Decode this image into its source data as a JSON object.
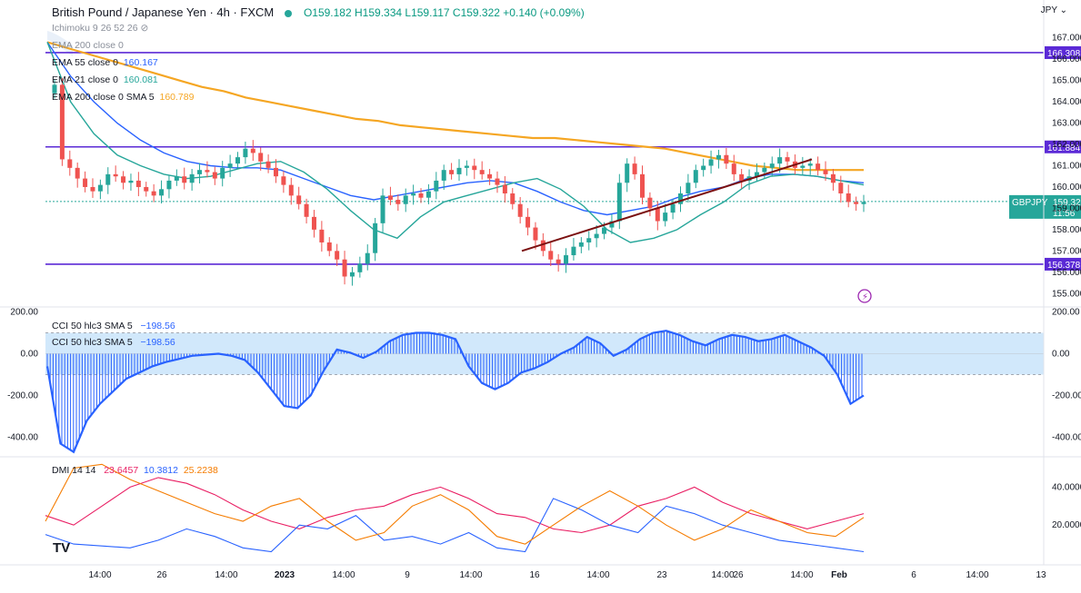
{
  "header": {
    "symbol": "British Pound / Japanese Yen · 4h · FXCM",
    "open": "O159.182",
    "high": "H159.334",
    "low": "L159.117",
    "close": "C159.322",
    "change": "+0.140 (+0.09%)"
  },
  "currency": "JPY",
  "legends": {
    "ichimoku": "Ichimoku 9 26 52 26",
    "ema_hidden": "EMA 200 close 0",
    "ema55_label": "EMA 55 close 0",
    "ema55_value": "160.167",
    "ema21_label": "EMA 21 close 0",
    "ema21_value": "160.081",
    "ema200_label": "EMA 200 close 0 SMA 5",
    "ema200_value": "160.789",
    "cci_label": "CCI 50 hlc3 SMA 5",
    "cci_value": "−198.56",
    "cci_label2": "CCI 50 hlc3 SMA 5",
    "cci_value2": "−198.56",
    "dmi_label": "DMI 14 14",
    "dmi_plus": "23.6457",
    "dmi_minus": "10.3812",
    "dmi_adx": "25.2238"
  },
  "logo_text": "TV",
  "price_tag": {
    "symbol": "GBPJPY",
    "price": "159.322",
    "countdown": "11:56"
  },
  "colors": {
    "up": "#26a69a",
    "down": "#ef5350",
    "ema55": "#2962ff",
    "ema21": "#26a69a",
    "ema200": "#f5a623",
    "level": "#5b2ad6",
    "trend": "#7b1010",
    "cci": "#2962ff",
    "cci_band": "#d1e8fb",
    "dmi_plus": "#e91e63",
    "dmi_minus": "#2962ff",
    "adx": "#f57c00"
  },
  "chart_data": [
    {
      "type": "candlestick",
      "title": "British Pound / Japanese Yen · 4h · FXCM",
      "ylim": [
        154.5,
        167.5
      ],
      "yticks": [
        "167.000",
        "166.000",
        "165.000",
        "164.000",
        "163.000",
        "162.000",
        "161.000",
        "160.000",
        "159.000",
        "158.000",
        "157.000",
        "156.000",
        "155.000"
      ],
      "xticks": [
        "14:00",
        "26",
        "14:00",
        "2023",
        "14:00",
        "9",
        "14:00",
        "16",
        "14:00",
        "23",
        "14:00",
        "26",
        "14:00",
        "Feb",
        "6",
        "14:00",
        "13"
      ],
      "horizontal_levels": [
        "166.308",
        "161.884",
        "156.378"
      ],
      "trendline": [
        [
          158.7,
          157.0
        ],
        [
          168.2,
          161.3
        ]
      ],
      "close": [
        164.8,
        161.3,
        160.9,
        160.4,
        160.0,
        159.8,
        160.1,
        160.6,
        160.5,
        160.2,
        160.3,
        160.0,
        159.8,
        159.6,
        159.9,
        160.3,
        160.5,
        160.2,
        160.6,
        160.8,
        160.7,
        160.4,
        160.9,
        161.1,
        161.4,
        161.8,
        161.6,
        161.2,
        160.9,
        160.5,
        160.1,
        159.6,
        159.2,
        158.6,
        158.0,
        157.4,
        157.0,
        156.6,
        155.8,
        156.0,
        156.4,
        156.9,
        158.3,
        159.6,
        159.4,
        159.2,
        159.6,
        159.7,
        159.5,
        159.8,
        160.3,
        160.8,
        160.6,
        160.9,
        161.0,
        160.8,
        160.6,
        160.4,
        160.1,
        159.7,
        159.2,
        158.6,
        158.1,
        157.5,
        157.0,
        156.6,
        156.4,
        156.8,
        157.2,
        157.4,
        157.6,
        157.8,
        158.1,
        158.4,
        160.2,
        161.1,
        160.6,
        159.5,
        159.0,
        158.4,
        158.8,
        159.2,
        159.7,
        160.2,
        160.8,
        161.0,
        161.3,
        161.5,
        161.1,
        160.6,
        160.3,
        160.5,
        160.7,
        160.9,
        161.1,
        161.4,
        161.2,
        160.9,
        161.0,
        161.1,
        160.8,
        160.6,
        160.2,
        159.7,
        159.3,
        159.2,
        159.3
      ],
      "ema200": [
        166.8,
        166.5,
        166.2,
        165.9,
        165.6,
        165.3,
        165.0,
        164.7,
        164.5,
        164.2,
        164.0,
        163.8,
        163.6,
        163.4,
        163.2,
        163.1,
        162.9,
        162.8,
        162.7,
        162.6,
        162.5,
        162.4,
        162.3,
        162.3,
        162.2,
        162.1,
        162.0,
        161.9,
        161.8,
        161.6,
        161.4,
        161.2,
        161.0,
        160.9,
        160.8,
        160.8,
        160.8,
        160.8
      ],
      "ema55": [
        166.8,
        165.2,
        164.0,
        163.0,
        162.2,
        161.6,
        161.2,
        161.0,
        160.9,
        160.9,
        160.8,
        160.4,
        160.0,
        159.6,
        159.4,
        159.6,
        159.8,
        160.0,
        160.2,
        160.3,
        160.2,
        159.8,
        159.3,
        158.9,
        158.7,
        158.9,
        159.1,
        159.5,
        159.8,
        160.0,
        160.4,
        160.6,
        160.6,
        160.5,
        160.3,
        160.2
      ],
      "ema21": [
        166.8,
        164.0,
        162.5,
        161.5,
        161.0,
        160.6,
        160.4,
        160.5,
        160.8,
        161.1,
        161.2,
        160.7,
        159.9,
        158.9,
        158.0,
        157.6,
        158.6,
        159.3,
        159.6,
        159.9,
        160.2,
        160.4,
        159.9,
        159.1,
        158.0,
        157.4,
        157.6,
        158.0,
        158.7,
        159.3,
        160.1,
        160.5,
        160.6,
        160.5,
        160.3,
        160.1
      ]
    },
    {
      "type": "area",
      "title": "CCI 50 hlc3 SMA 5",
      "ylim": [
        -480,
        215
      ],
      "yticks": [
        "200.00",
        "0.00",
        "-200.00",
        "-400.00"
      ],
      "band": [
        100,
        -100
      ],
      "values": [
        -60,
        -430,
        -470,
        -320,
        -240,
        -180,
        -120,
        -90,
        -60,
        -40,
        -25,
        -10,
        -5,
        0,
        -10,
        -30,
        -90,
        -170,
        -250,
        -260,
        -200,
        -80,
        20,
        5,
        -20,
        10,
        60,
        90,
        100,
        100,
        90,
        70,
        -60,
        -140,
        -170,
        -140,
        -90,
        -70,
        -40,
        0,
        30,
        80,
        50,
        -10,
        20,
        70,
        100,
        110,
        90,
        60,
        40,
        70,
        90,
        80,
        60,
        70,
        90,
        60,
        30,
        -10,
        -100,
        -240,
        -200
      ]
    },
    {
      "type": "line",
      "title": "DMI 14 14",
      "ylim": [
        0,
        55
      ],
      "yticks": [
        "40.0000",
        "20.0000"
      ],
      "series": [
        {
          "name": "+DI",
          "values": [
            25,
            20,
            30,
            40,
            45,
            42,
            36,
            28,
            22,
            18,
            24,
            28,
            30,
            36,
            40,
            34,
            26,
            24,
            18,
            16,
            20,
            30,
            34,
            40,
            32,
            26,
            22,
            18,
            22,
            26
          ]
        },
        {
          "name": "-DI",
          "values": [
            15,
            10,
            9,
            8,
            12,
            18,
            14,
            8,
            6,
            20,
            18,
            25,
            12,
            14,
            10,
            16,
            8,
            6,
            34,
            28,
            20,
            16,
            30,
            26,
            20,
            16,
            12,
            10,
            8,
            6
          ]
        },
        {
          "name": "ADX",
          "values": [
            22,
            50,
            52,
            44,
            38,
            32,
            26,
            22,
            30,
            34,
            22,
            12,
            16,
            30,
            36,
            28,
            14,
            10,
            20,
            30,
            38,
            30,
            20,
            12,
            18,
            28,
            22,
            16,
            14,
            24
          ]
        }
      ]
    }
  ]
}
